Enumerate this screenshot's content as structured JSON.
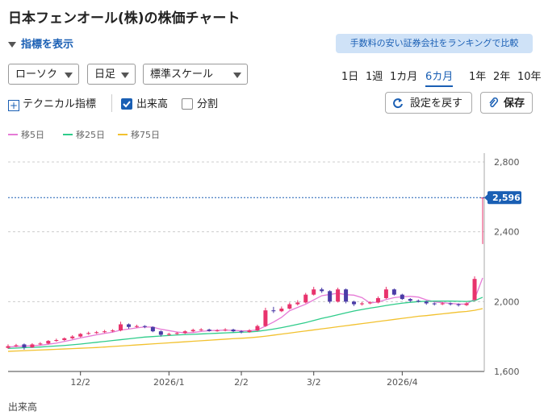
{
  "header": {
    "title": "日本フェンオール(株)の株価チャート",
    "toggle": "指標を表示",
    "promo": "手数料の安い証券会社をランキングで比較"
  },
  "controls": {
    "selects": [
      "ローソク",
      "日足",
      "標準スケール"
    ],
    "periods": [
      "1日",
      "1週",
      "1カ月",
      "6カ月",
      "1年",
      "2年",
      "10年"
    ],
    "selected_period": 3,
    "technical": "テクニカル指標",
    "volume_option": "出来高",
    "volume_checked": true,
    "split_option": "分割",
    "split_checked": false,
    "reset": "設定を戻す",
    "save": "保存"
  },
  "chart_data": {
    "type": "candlestick",
    "up_color": "#e8336d",
    "down_color": "#4b3ca7",
    "candles": [
      [
        1735,
        1755,
        1730,
        1745
      ],
      [
        1745,
        1758,
        1740,
        1750
      ],
      [
        1755,
        1760,
        1725,
        1738
      ],
      [
        1738,
        1762,
        1735,
        1755
      ],
      [
        1755,
        1768,
        1750,
        1760
      ],
      [
        1760,
        1780,
        1755,
        1775
      ],
      [
        1775,
        1788,
        1770,
        1780
      ],
      [
        1780,
        1795,
        1775,
        1790
      ],
      [
        1790,
        1808,
        1785,
        1800
      ],
      [
        1800,
        1820,
        1795,
        1815
      ],
      [
        1815,
        1828,
        1810,
        1820
      ],
      [
        1820,
        1832,
        1815,
        1825
      ],
      [
        1825,
        1838,
        1820,
        1830
      ],
      [
        1830,
        1842,
        1825,
        1835
      ],
      [
        1835,
        1885,
        1830,
        1870
      ],
      [
        1870,
        1875,
        1845,
        1855
      ],
      [
        1855,
        1868,
        1850,
        1860
      ],
      [
        1860,
        1865,
        1848,
        1855
      ],
      [
        1855,
        1858,
        1825,
        1830
      ],
      [
        1830,
        1835,
        1800,
        1810
      ],
      [
        1810,
        1822,
        1805,
        1815
      ],
      [
        1815,
        1826,
        1810,
        1820
      ],
      [
        1820,
        1836,
        1815,
        1830
      ],
      [
        1830,
        1845,
        1825,
        1838
      ],
      [
        1838,
        1848,
        1832,
        1840
      ],
      [
        1840,
        1845,
        1828,
        1832
      ],
      [
        1832,
        1842,
        1828,
        1835
      ],
      [
        1835,
        1848,
        1830,
        1840
      ],
      [
        1840,
        1845,
        1825,
        1830
      ],
      [
        1830,
        1836,
        1818,
        1826
      ],
      [
        1826,
        1842,
        1822,
        1835
      ],
      [
        1835,
        1868,
        1830,
        1860
      ],
      [
        1860,
        1965,
        1855,
        1950
      ],
      [
        1950,
        1970,
        1935,
        1945
      ],
      [
        1945,
        1972,
        1940,
        1960
      ],
      [
        1960,
        1995,
        1955,
        1985
      ],
      [
        1985,
        2008,
        1978,
        1995
      ],
      [
        1995,
        2050,
        1990,
        2040
      ],
      [
        2040,
        2085,
        2035,
        2070
      ],
      [
        2070,
        2080,
        2050,
        2060
      ],
      [
        2060,
        2065,
        1990,
        2000
      ],
      [
        2000,
        2080,
        1995,
        2070
      ],
      [
        2070,
        2075,
        1990,
        2000
      ],
      [
        2000,
        2005,
        1975,
        1985
      ],
      [
        1985,
        1998,
        1978,
        1990
      ],
      [
        1990,
        2002,
        1985,
        1995
      ],
      [
        1995,
        2030,
        1990,
        2020
      ],
      [
        2020,
        2085,
        2015,
        2070
      ],
      [
        2070,
        2075,
        2035,
        2040
      ],
      [
        2040,
        2045,
        2010,
        2015
      ],
      [
        2015,
        2020,
        1998,
        2005
      ],
      [
        2005,
        2012,
        1995,
        2000
      ],
      [
        2000,
        2005,
        1982,
        1990
      ],
      [
        1990,
        1995,
        1978,
        1985
      ],
      [
        1985,
        1998,
        1980,
        1990
      ],
      [
        1990,
        1995,
        1978,
        1985
      ],
      [
        1985,
        1990,
        1972,
        1980
      ],
      [
        1980,
        1998,
        1975,
        1990
      ],
      [
        2010,
        2145,
        2005,
        2130
      ],
      [
        2596,
        2596,
        2330,
        2596
      ]
    ],
    "series": [
      {
        "name": "移5日",
        "color": "#e67ad6",
        "values": [
          1740,
          1743,
          1745,
          1748,
          1750,
          1756,
          1762,
          1772,
          1781,
          1792,
          1801,
          1810,
          1818,
          1825,
          1837,
          1843,
          1850,
          1855,
          1854,
          1842,
          1834,
          1826,
          1821,
          1823,
          1829,
          1834,
          1835,
          1837,
          1835,
          1833,
          1833,
          1838,
          1860,
          1883,
          1910,
          1948,
          1967,
          1985,
          2010,
          2034,
          2041,
          2048,
          2040,
          2037,
          2023,
          1992,
          1998,
          2012,
          2023,
          2028,
          2030,
          2026,
          2010,
          1999,
          1994,
          1990,
          1986,
          1986,
          2015,
          2136
        ]
      },
      {
        "name": "移25日",
        "color": "#2ecc8a",
        "values": [
          1732,
          1734,
          1736,
          1738,
          1740,
          1743,
          1746,
          1749,
          1753,
          1757,
          1762,
          1767,
          1772,
          1777,
          1782,
          1787,
          1792,
          1797,
          1800,
          1803,
          1806,
          1809,
          1811,
          1813,
          1815,
          1817,
          1819,
          1821,
          1823,
          1825,
          1826,
          1830,
          1836,
          1843,
          1851,
          1860,
          1870,
          1880,
          1892,
          1904,
          1914,
          1925,
          1936,
          1946,
          1955,
          1963,
          1970,
          1978,
          1985,
          1991,
          1996,
          2000,
          2002,
          2003,
          2003,
          2003,
          2002,
          2001,
          2005,
          2025
        ]
      },
      {
        "name": "移75日",
        "color": "#f2c12e",
        "values": [
          1715,
          1717,
          1719,
          1721,
          1723,
          1725,
          1727,
          1729,
          1731,
          1733,
          1735,
          1737,
          1740,
          1743,
          1746,
          1749,
          1752,
          1755,
          1758,
          1761,
          1764,
          1767,
          1770,
          1773,
          1776,
          1779,
          1782,
          1785,
          1788,
          1790,
          1793,
          1797,
          1802,
          1808,
          1814,
          1820,
          1826,
          1832,
          1838,
          1844,
          1850,
          1856,
          1862,
          1868,
          1874,
          1880,
          1886,
          1892,
          1898,
          1904,
          1910,
          1916,
          1920,
          1925,
          1930,
          1935,
          1940,
          1944,
          1950,
          1960
        ]
      }
    ],
    "ylim": [
      1600,
      2800
    ],
    "yticks": [
      {
        "value": 1600,
        "label": "1,600"
      },
      {
        "value": 2000,
        "label": "2,000"
      },
      {
        "value": 2400,
        "label": "2,400"
      },
      {
        "value": 2800,
        "label": "2,800"
      }
    ],
    "xticks": [
      {
        "value": 9,
        "label": "12/2"
      },
      {
        "value": 20,
        "label": "2026/1"
      },
      {
        "value": 29,
        "label": "2/2"
      },
      {
        "value": 38,
        "label": "3/2"
      },
      {
        "value": 49,
        "label": "2026/4"
      }
    ],
    "last_price": {
      "value": 2596,
      "label": "2,596"
    },
    "grid": true,
    "volume_label": "出来高"
  }
}
